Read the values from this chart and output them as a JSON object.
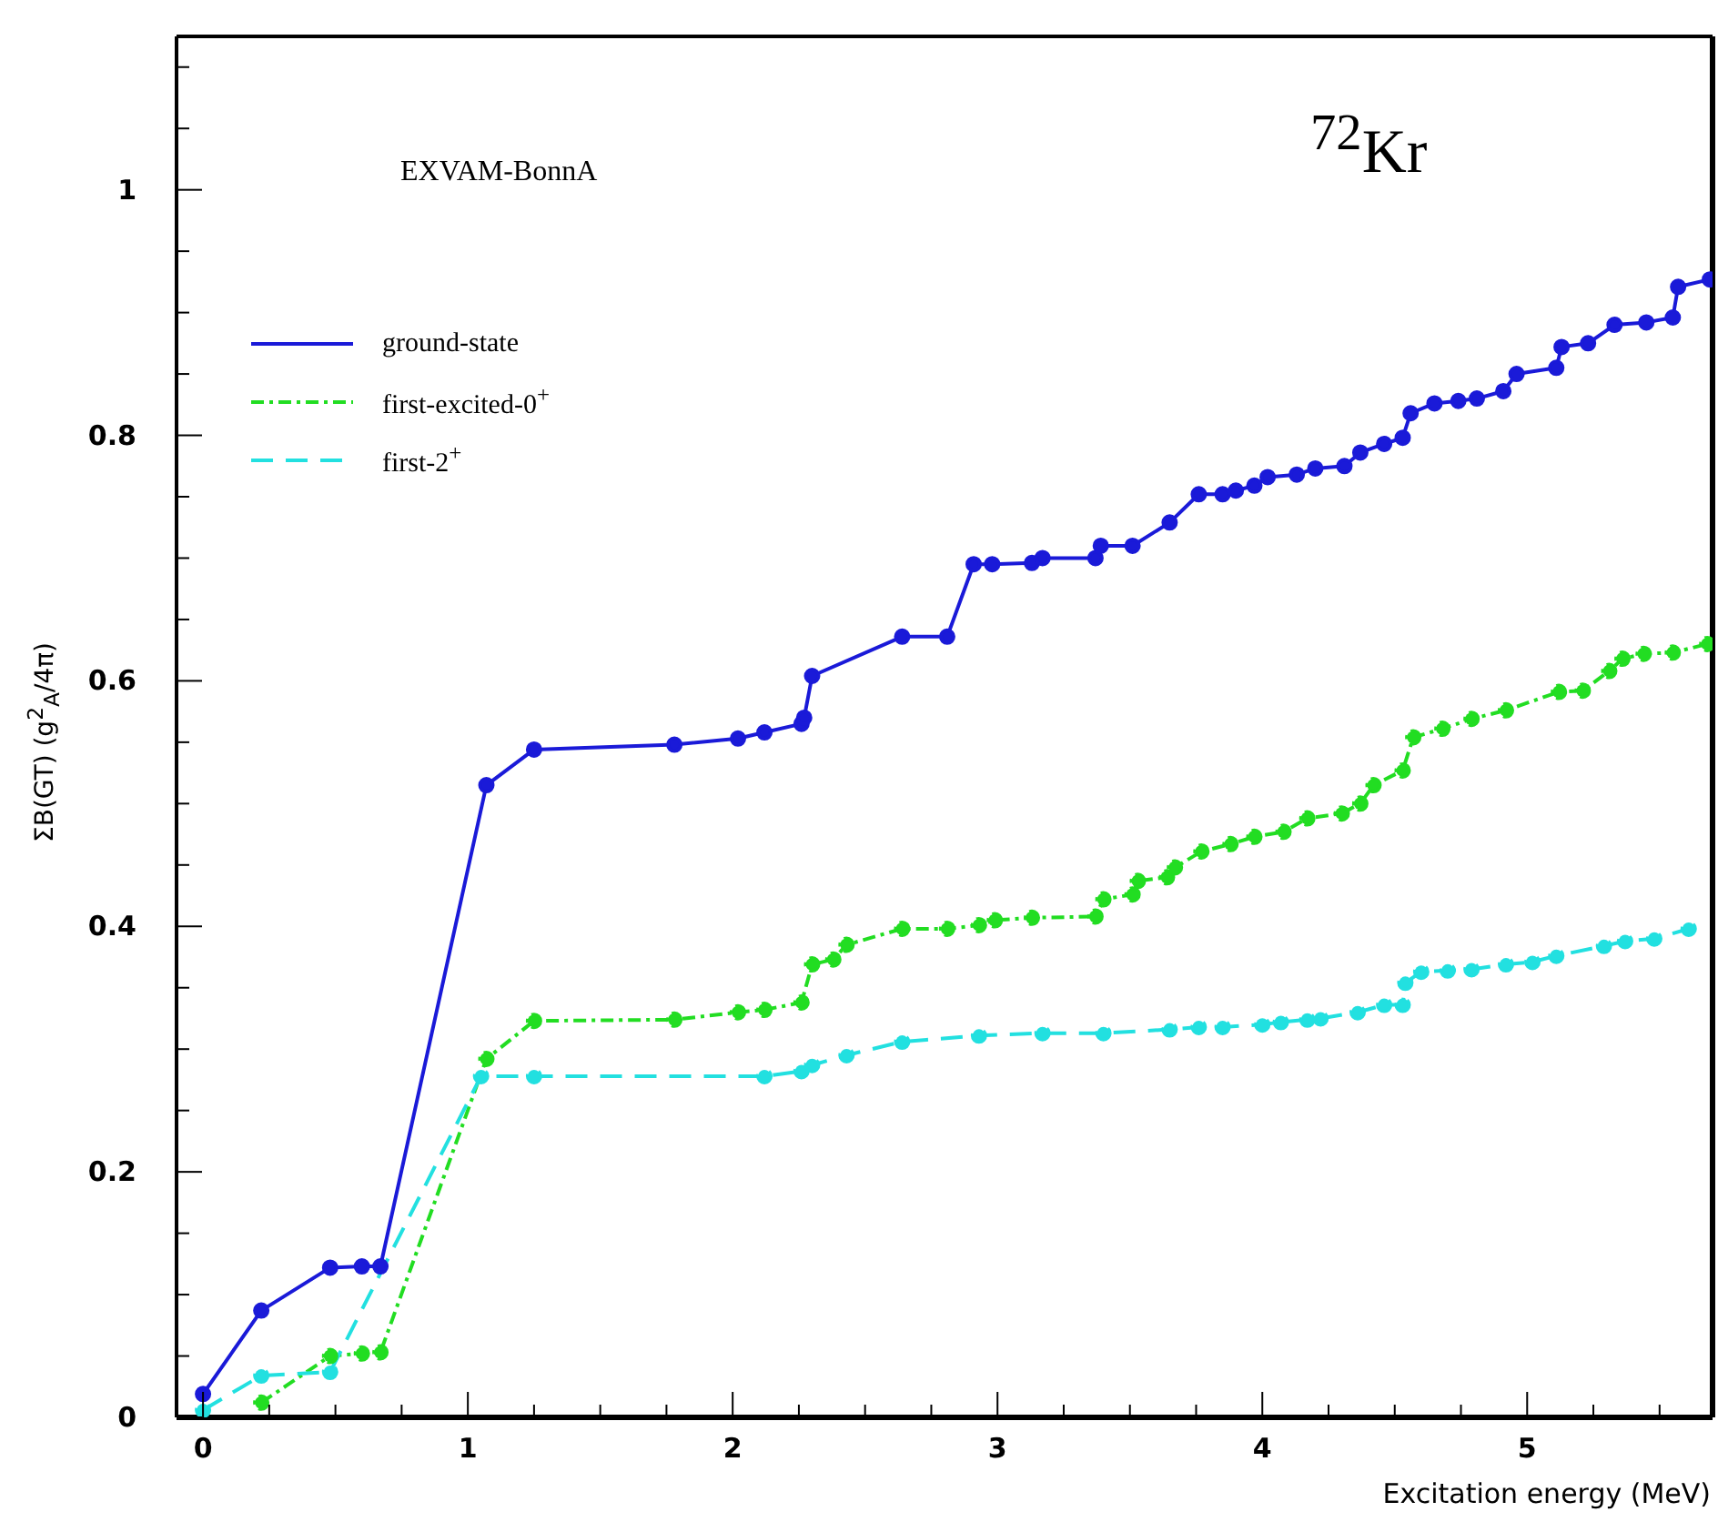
{
  "chart_data": {
    "type": "line",
    "xlabel": "Excitation energy (MeV)",
    "ylabel": "ΣB(GT) (g$^{2}$$_{A}$/4π)",
    "annotations": [
      "EXVAM-BonnA",
      "$^{72}$Kr"
    ],
    "legend": "top left",
    "marker": "circle",
    "xlim": [
      -0.1,
      5.7
    ],
    "ylim": [
      0,
      1.125
    ],
    "xticks": [
      0,
      {
        "value": 0.25,
        "label": null
      },
      {
        "value": 0.5,
        "label": null
      },
      {
        "value": 0.75,
        "label": null
      },
      1,
      {
        "value": 1.25,
        "label": null
      },
      {
        "value": 1.5,
        "label": null
      },
      {
        "value": 1.75,
        "label": null
      },
      2,
      {
        "value": 2.25,
        "label": null
      },
      {
        "value": 2.5,
        "label": null
      },
      {
        "value": 2.75,
        "label": null
      },
      3,
      {
        "value": 3.25,
        "label": null
      },
      {
        "value": 3.5,
        "label": null
      },
      {
        "value": 3.75,
        "label": null
      },
      4,
      {
        "value": 4.25,
        "label": null
      },
      {
        "value": 4.5,
        "label": null
      },
      {
        "value": 4.75,
        "label": null
      },
      5,
      {
        "value": 5.25,
        "label": null
      },
      {
        "value": 5.5,
        "label": null
      }
    ],
    "yticks": [
      0,
      {
        "value": 0.05,
        "label": null
      },
      {
        "value": 0.1,
        "label": null
      },
      {
        "value": 0.15,
        "label": null
      },
      0.2,
      {
        "value": 0.25,
        "label": null
      },
      {
        "value": 0.3,
        "label": null
      },
      {
        "value": 0.35,
        "label": null
      },
      0.4,
      {
        "value": 0.45,
        "label": null
      },
      {
        "value": 0.5,
        "label": null
      },
      {
        "value": 0.55,
        "label": null
      },
      0.6,
      {
        "value": 0.65,
        "label": null
      },
      {
        "value": 0.7,
        "label": null
      },
      {
        "value": 0.75,
        "label": null
      },
      0.8,
      {
        "value": 0.85,
        "label": null
      },
      {
        "value": 0.9,
        "label": null
      },
      {
        "value": 0.95,
        "label": null
      },
      1,
      {
        "value": 1.05,
        "label": null
      },
      {
        "value": 1.1,
        "label": null
      }
    ],
    "series": [
      {
        "name": "ground-state",
        "color": "#1a1ad8",
        "line_style": "solid",
        "x": [
          0,
          0.22,
          0.48,
          0.6,
          0.67,
          1.07,
          1.25,
          1.78,
          2.02,
          2.12,
          2.26,
          2.27,
          2.3,
          2.64,
          2.81,
          2.91,
          2.98,
          3.13,
          3.17,
          3.37,
          3.39,
          3.51,
          3.65,
          3.76,
          3.85,
          3.9,
          3.97,
          4.02,
          4.13,
          4.2,
          4.31,
          4.37,
          4.46,
          4.53,
          4.56,
          4.65,
          4.74,
          4.81,
          4.91,
          4.96,
          5.11,
          5.13,
          5.23,
          5.33,
          5.45,
          5.55,
          5.57,
          5.69
        ],
        "values": [
          0.019,
          0.087,
          0.122,
          0.123,
          0.123,
          0.515,
          0.544,
          0.548,
          0.553,
          0.558,
          0.565,
          0.57,
          0.604,
          0.636,
          0.636,
          0.695,
          0.695,
          0.696,
          0.7,
          0.7,
          0.71,
          0.71,
          0.729,
          0.752,
          0.752,
          0.755,
          0.759,
          0.766,
          0.768,
          0.773,
          0.775,
          0.786,
          0.793,
          0.798,
          0.818,
          0.826,
          0.828,
          0.83,
          0.836,
          0.85,
          0.855,
          0.872,
          0.875,
          0.89,
          0.892,
          0.896,
          0.921,
          0.927
        ]
      },
      {
        "name": "first-excited-0$^{+}$",
        "color": "#22dd22",
        "line_style": "dotted",
        "x": [
          0.22,
          0.48,
          0.6,
          0.67,
          1.07,
          1.25,
          1.78,
          2.02,
          2.12,
          2.26,
          2.3,
          2.38,
          2.43,
          2.64,
          2.81,
          2.93,
          2.99,
          3.13,
          3.37,
          3.4,
          3.51,
          3.53,
          3.64,
          3.67,
          3.77,
          3.88,
          3.97,
          4.08,
          4.17,
          4.3,
          4.37,
          4.42,
          4.53,
          4.57,
          4.68,
          4.79,
          4.92,
          5.12,
          5.21,
          5.31,
          5.36,
          5.44,
          5.55,
          5.68
        ],
        "values": [
          0.012,
          0.05,
          0.052,
          0.053,
          0.292,
          0.323,
          0.324,
          0.33,
          0.332,
          0.338,
          0.369,
          0.373,
          0.385,
          0.398,
          0.398,
          0.401,
          0.405,
          0.407,
          0.408,
          0.422,
          0.426,
          0.437,
          0.44,
          0.448,
          0.461,
          0.467,
          0.473,
          0.477,
          0.488,
          0.492,
          0.5,
          0.515,
          0.527,
          0.554,
          0.561,
          0.569,
          0.576,
          0.591,
          0.592,
          0.608,
          0.618,
          0.622,
          0.623,
          0.63
        ]
      },
      {
        "name": "first-2$^{+}$",
        "color": "#22e0e0",
        "line_style": "dashed",
        "x": [
          0,
          0.22,
          0.48,
          1.05,
          1.25,
          2.12,
          2.26,
          2.3,
          2.43,
          2.64,
          2.93,
          3.17,
          3.4,
          3.65,
          3.76,
          3.85,
          4.0,
          4.07,
          4.17,
          4.22,
          4.36,
          4.46,
          4.53,
          4.54,
          4.6,
          4.7,
          4.79,
          4.92,
          5.02,
          5.11,
          5.29,
          5.37,
          5.48,
          5.61
        ],
        "values": [
          0.006,
          0.034,
          0.037,
          0.278,
          0.278,
          0.278,
          0.282,
          0.287,
          0.295,
          0.306,
          0.311,
          0.313,
          0.313,
          0.316,
          0.318,
          0.318,
          0.32,
          0.322,
          0.324,
          0.325,
          0.33,
          0.336,
          0.336,
          0.354,
          0.363,
          0.364,
          0.365,
          0.369,
          0.371,
          0.376,
          0.384,
          0.388,
          0.39,
          0.398
        ]
      }
    ]
  }
}
